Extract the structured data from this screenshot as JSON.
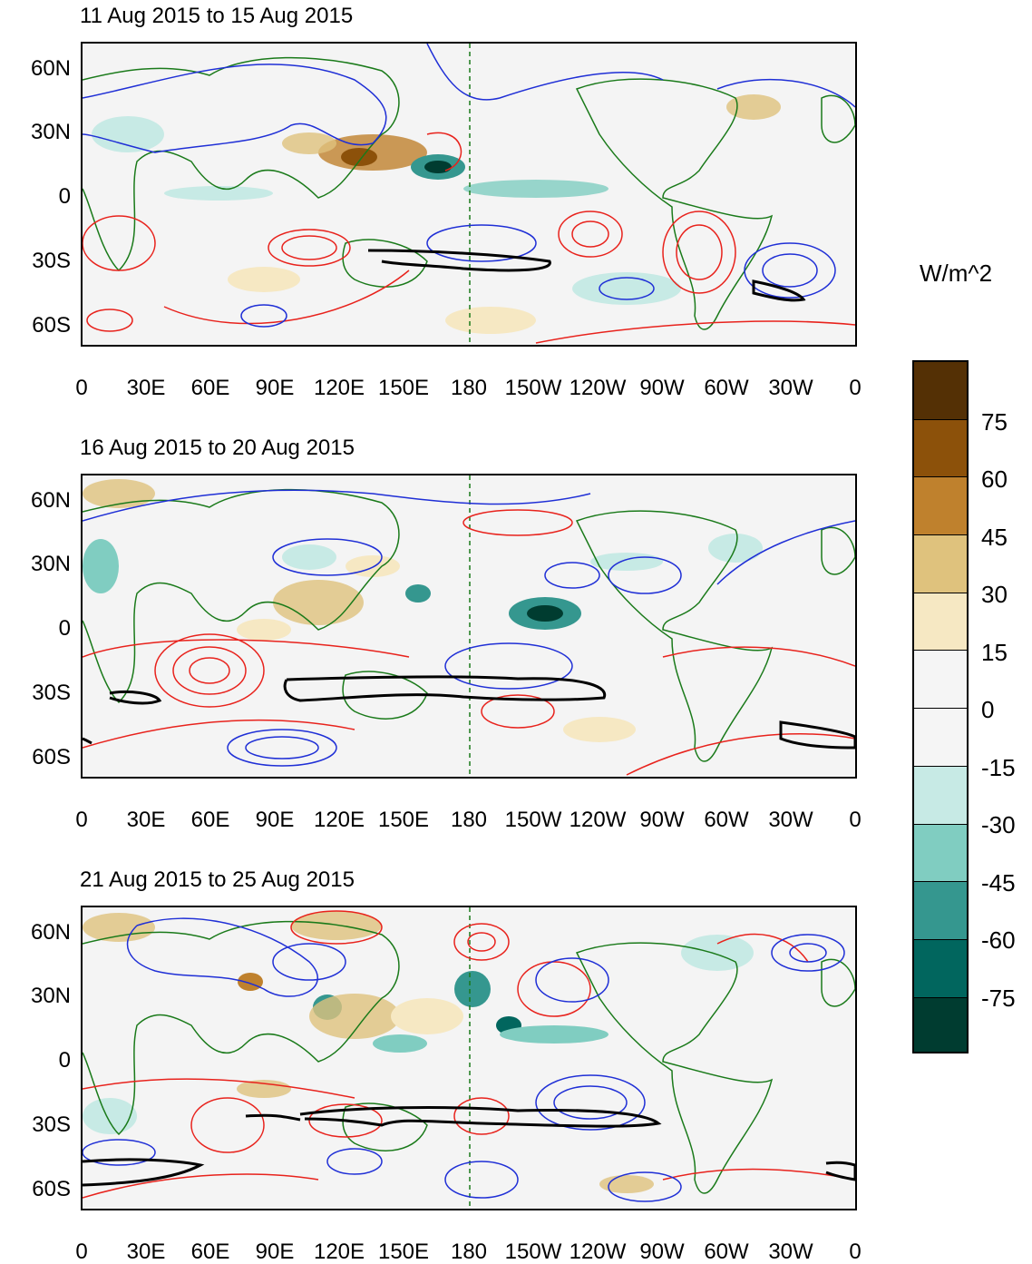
{
  "panels": [
    {
      "title": "11 Aug 2015 to 15 Aug 2015"
    },
    {
      "title": "16 Aug 2015 to 20 Aug 2015"
    },
    {
      "title": "21 Aug 2015 to 25 Aug 2015"
    }
  ],
  "lat_ticks": [
    "60N",
    "30N",
    "0",
    "30S",
    "60S"
  ],
  "lon_ticks": [
    "0",
    "30E",
    "60E",
    "90E",
    "120E",
    "150E",
    "180",
    "150W",
    "120W",
    "90W",
    "60W",
    "30W",
    "0"
  ],
  "colorbar": {
    "unit": "W/m^2",
    "labels": [
      "75",
      "60",
      "45",
      "30",
      "15",
      "0",
      "-15",
      "-30",
      "-45",
      "-60",
      "-75"
    ],
    "colors": [
      "#543005",
      "#8c510a",
      "#bf812d",
      "#dfc27d",
      "#f6e8c3",
      "#f5f5f5",
      "#f5f5f5",
      "#c7eae5",
      "#80cdc1",
      "#35978f",
      "#01665e",
      "#003c30"
    ]
  },
  "colors": {
    "coast": "#1a7a1a",
    "positive_contour": "#e8221c",
    "negative_contour": "#1f2fd6",
    "zero_contour": "#000000"
  }
}
